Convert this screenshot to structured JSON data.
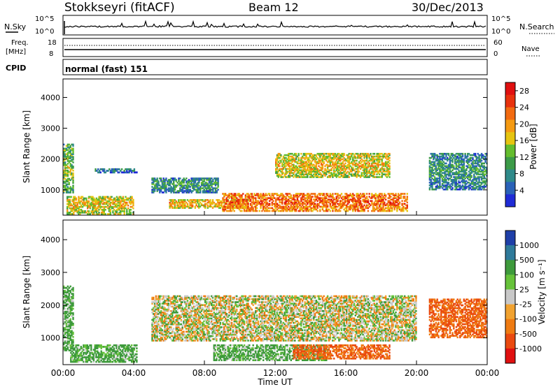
{
  "header": {
    "station": "Stokkseyri (fitACF)",
    "beam": "Beam 12",
    "date": "30/Dec/2013"
  },
  "params": {
    "nsky_label": "N.Sky",
    "nsearch_label": "N.Search",
    "log_top": "10^5",
    "log_bottom": "10^0",
    "freq_label_1": "Freq.",
    "freq_label_2": "[MHz]",
    "freq_ticks": [
      "18",
      "8"
    ],
    "nave_label": "Nave",
    "nave_ticks": [
      "60",
      "0"
    ],
    "cpid_label": "CPID",
    "cpid_value": "normal (fast) 151"
  },
  "chart_data": [
    {
      "type": "heatmap",
      "panel": "power",
      "ylabel": "Slant Range [km]",
      "xlabel": "",
      "ylim": [
        180,
        4600
      ],
      "yticks": [
        "1000",
        "2000",
        "3000",
        "4000"
      ],
      "xlim_hours": [
        0,
        24
      ],
      "xticks": [
        "00:00",
        "04:00",
        "08:00",
        "12:00",
        "16:00",
        "20:00",
        "00:00"
      ],
      "grid": false,
      "colorbar": {
        "label": "Power [dB]",
        "ticks": [
          "4",
          "8",
          "12",
          "16",
          "20",
          "24",
          "28"
        ],
        "range": [
          0,
          30
        ],
        "colors": [
          "#1f2bd6",
          "#2a62b8",
          "#2f8a8a",
          "#3c9b48",
          "#64bd2e",
          "#e6c410",
          "#f59a12",
          "#f26a10",
          "#e8320d",
          "#e01010"
        ]
      },
      "regions_note_hours_km": [
        {
          "t0": 0.0,
          "t1": 0.6,
          "r0": 900,
          "r1": 2500,
          "level": 14
        },
        {
          "t0": 0.2,
          "t1": 4.0,
          "r0": 200,
          "r1": 800,
          "level": 18
        },
        {
          "t0": 1.8,
          "t1": 4.2,
          "r0": 1550,
          "r1": 1700,
          "level": 8
        },
        {
          "t0": 5.0,
          "t1": 8.8,
          "r0": 900,
          "r1": 1400,
          "level": 10
        },
        {
          "t0": 6.0,
          "t1": 10.5,
          "r0": 400,
          "r1": 700,
          "level": 20
        },
        {
          "t0": 9.0,
          "t1": 19.5,
          "r0": 300,
          "r1": 900,
          "level": 24
        },
        {
          "t0": 12.0,
          "t1": 18.5,
          "r0": 1400,
          "r1": 2200,
          "level": 18
        },
        {
          "t0": 20.7,
          "t1": 24.0,
          "r0": 1000,
          "r1": 2200,
          "level": 10
        }
      ]
    },
    {
      "type": "heatmap",
      "panel": "velocity",
      "ylabel": "Slant Range [km]",
      "xlabel": "Time UT",
      "ylim": [
        180,
        4600
      ],
      "yticks": [
        "1000",
        "2000",
        "3000",
        "4000"
      ],
      "xlim_hours": [
        0,
        24
      ],
      "xticks": [
        "00:00",
        "04:00",
        "08:00",
        "12:00",
        "16:00",
        "20:00",
        "00:00"
      ],
      "grid": false,
      "colorbar": {
        "label": "Velocity [m s⁻¹]",
        "ticks": [
          "1000",
          "500",
          "100",
          "25",
          "-25",
          "-100",
          "-500",
          "-1000"
        ],
        "colors": [
          "#1f3fa8",
          "#2f7a9a",
          "#3e9a3c",
          "#66c23a",
          "#c8c8c8",
          "#f1a230",
          "#ef7b12",
          "#ea4a10",
          "#e01010"
        ]
      },
      "regions_note_hours_km": [
        {
          "t0": 0.0,
          "t1": 0.6,
          "r0": 600,
          "r1": 2600,
          "vel": 100
        },
        {
          "t0": 0.4,
          "t1": 4.2,
          "r0": 250,
          "r1": 800,
          "vel": 100
        },
        {
          "t0": 5.0,
          "t1": 20.0,
          "r0": 900,
          "r1": 2300,
          "vel": 0
        },
        {
          "t0": 8.5,
          "t1": 15.0,
          "r0": 300,
          "r1": 800,
          "vel": 100
        },
        {
          "t0": 13.0,
          "t1": 18.5,
          "r0": 350,
          "r1": 800,
          "vel": -300
        },
        {
          "t0": 20.7,
          "t1": 24.0,
          "r0": 1000,
          "r1": 2200,
          "vel": -300
        }
      ]
    }
  ]
}
